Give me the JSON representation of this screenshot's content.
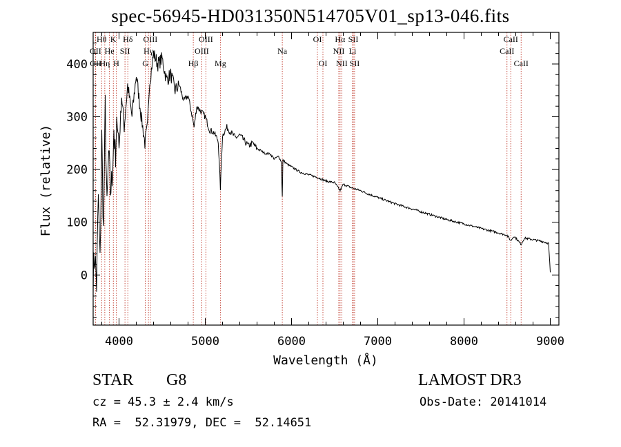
{
  "chart_data": {
    "type": "line",
    "title": "spec-56945-HD031350N514705V01_sp13-046.fits",
    "xlabel": "Wavelength (Å)",
    "ylabel": "Flux (relative)",
    "xlim": [
      3700,
      9100
    ],
    "ylim": [
      -95,
      460
    ],
    "x_ticks": [
      4000,
      5000,
      6000,
      7000,
      8000,
      9000
    ],
    "y_ticks": [
      0,
      100,
      200,
      300,
      400
    ],
    "grid": false,
    "series": [
      {
        "name": "flux",
        "x": [
          3700,
          3720,
          3740,
          3760,
          3780,
          3800,
          3820,
          3840,
          3860,
          3880,
          3900,
          3920,
          3940,
          3960,
          3980,
          4000,
          4030,
          4060,
          4100,
          4150,
          4200,
          4250,
          4300,
          4330,
          4350,
          4400,
          4450,
          4500,
          4550,
          4600,
          4650,
          4700,
          4750,
          4800,
          4850,
          4870,
          4900,
          4950,
          5000,
          5050,
          5100,
          5150,
          5175,
          5200,
          5250,
          5300,
          5350,
          5400,
          5450,
          5500,
          5550,
          5600,
          5650,
          5700,
          5750,
          5800,
          5850,
          5880,
          5893,
          5900,
          5950,
          6000,
          6100,
          6200,
          6300,
          6400,
          6500,
          6563,
          6600,
          6700,
          6800,
          6900,
          7000,
          7200,
          7400,
          7600,
          7800,
          8000,
          8200,
          8400,
          8500,
          8542,
          8580,
          8662,
          8700,
          8800,
          8900,
          8980,
          9000
        ],
        "y": [
          0,
          40,
          -20,
          150,
          20,
          260,
          80,
          320,
          120,
          230,
          160,
          180,
          280,
          200,
          310,
          240,
          340,
          280,
          360,
          300,
          380,
          310,
          250,
          280,
          360,
          420,
          400,
          410,
          370,
          380,
          350,
          360,
          330,
          340,
          300,
          280,
          320,
          310,
          300,
          275,
          270,
          255,
          165,
          265,
          280,
          270,
          260,
          265,
          255,
          245,
          250,
          240,
          235,
          230,
          230,
          220,
          225,
          215,
          150,
          218,
          210,
          205,
          195,
          190,
          185,
          178,
          175,
          160,
          172,
          165,
          160,
          153,
          147,
          135,
          125,
          115,
          105,
          97,
          88,
          80,
          75,
          65,
          74,
          58,
          70,
          67,
          64,
          60,
          5
        ]
      }
    ],
    "line_markers": [
      {
        "label": "Hθ",
        "x": 3798,
        "row": 1
      },
      {
        "label": "OII",
        "x": 3727,
        "row": 2
      },
      {
        "label": "OII",
        "x": 3729,
        "row": 3
      },
      {
        "label": "He",
        "x": 3889,
        "row": 2
      },
      {
        "label": "Hη",
        "x": 3835,
        "row": 3
      },
      {
        "label": "K",
        "x": 3934,
        "row": 1
      },
      {
        "label": "H",
        "x": 3969,
        "row": 3
      },
      {
        "label": "SII",
        "x": 4069,
        "row": 2
      },
      {
        "label": "Hδ",
        "x": 4102,
        "row": 1
      },
      {
        "label": "OIII",
        "x": 4363,
        "row": 1
      },
      {
        "label": "Hγ",
        "x": 4341,
        "row": 2
      },
      {
        "label": "G",
        "x": 4305,
        "row": 3
      },
      {
        "label": "Hβ",
        "x": 4861,
        "row": 3
      },
      {
        "label": "OIII",
        "x": 5007,
        "row": 1
      },
      {
        "label": "OIII",
        "x": 4959,
        "row": 2
      },
      {
        "label": "Mg",
        "x": 5175,
        "row": 3
      },
      {
        "label": "Na",
        "x": 5893,
        "row": 2
      },
      {
        "label": "OI",
        "x": 6300,
        "row": 1
      },
      {
        "label": "OI",
        "x": 6364,
        "row": 3
      },
      {
        "label": "Hα",
        "x": 6563,
        "row": 1
      },
      {
        "label": "NII",
        "x": 6548,
        "row": 2
      },
      {
        "label": "NII",
        "x": 6583,
        "row": 3
      },
      {
        "label": "SII",
        "x": 6716,
        "row": 1
      },
      {
        "label": "Li",
        "x": 6708,
        "row": 2
      },
      {
        "label": "SII",
        "x": 6731,
        "row": 3
      },
      {
        "label": "CaII",
        "x": 8542,
        "row": 1
      },
      {
        "label": "CaII",
        "x": 8498,
        "row": 2
      },
      {
        "label": "CaII",
        "x": 8662,
        "row": 3
      }
    ]
  },
  "info": {
    "object_class": "STAR",
    "subclass": "G8",
    "survey": "LAMOST DR3",
    "cz": "cz = 45.3 ± 2.4 km/s",
    "obs_date": "Obs-Date: 20141014",
    "radec": "RA =  52.31979, DEC =  52.14651"
  },
  "colors": {
    "line": "#000000",
    "marker": "#c0392b",
    "text": "#000000"
  }
}
